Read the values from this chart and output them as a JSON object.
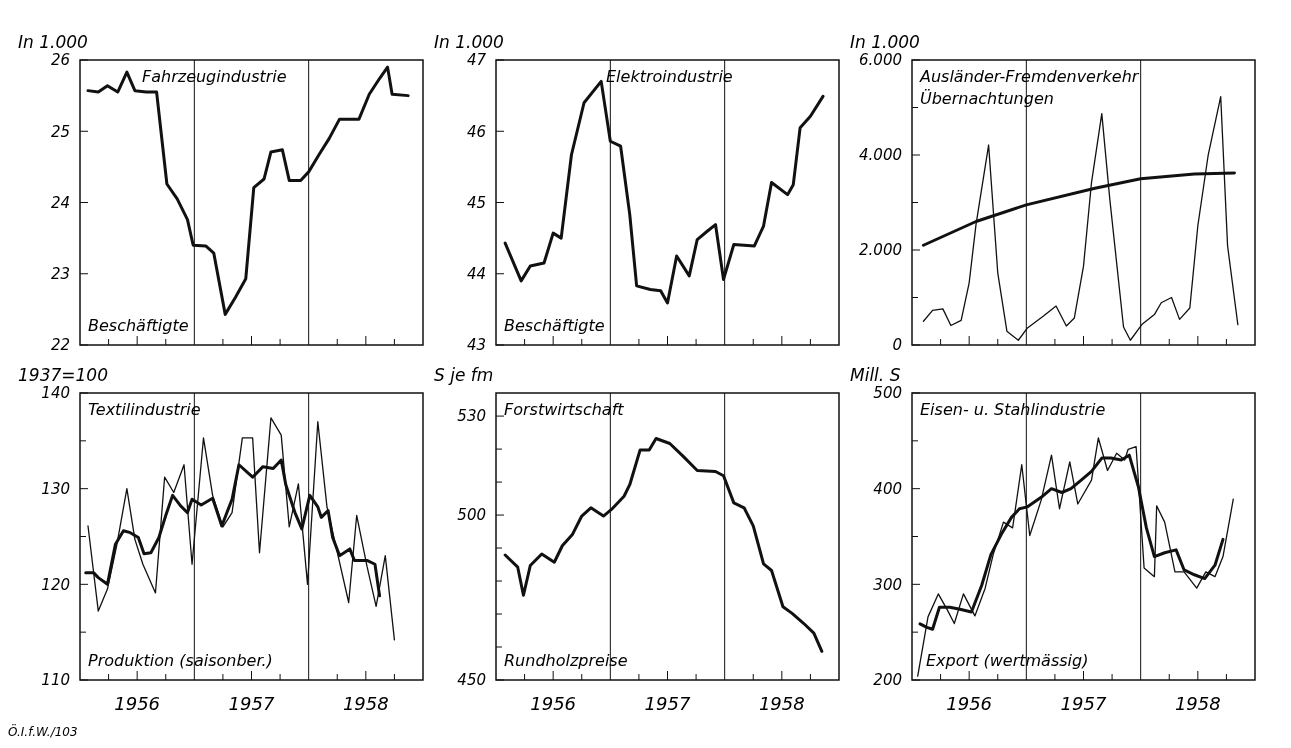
{
  "chart_data": [
    {
      "type": "line",
      "title": "Fahrzeugindustrie",
      "subtitle": "Beschäftigte",
      "ylabel": "In 1.000",
      "xlim": [
        1956,
        1959
      ],
      "ylim": [
        22,
        26
      ],
      "yticks": [
        22,
        23,
        24,
        25,
        26
      ],
      "xticks": [
        {
          "value": 1956.25,
          "label": null
        },
        {
          "value": 1956.5,
          "label": "1956"
        },
        {
          "value": 1956.75,
          "label": null
        },
        {
          "value": 1957.25,
          "label": null
        },
        {
          "value": 1957.5,
          "label": "1957"
        },
        {
          "value": 1957.75,
          "label": null
        },
        {
          "value": 1958.25,
          "label": null
        },
        {
          "value": 1958.5,
          "label": "1958"
        },
        {
          "value": 1958.75,
          "label": null
        }
      ],
      "tick_labels": "y",
      "ref_lines": [
        {
          "axis": "x",
          "value": 1957
        },
        {
          "axis": "x",
          "value": 1958
        }
      ],
      "series": [
        {
          "color": "#111111",
          "x": [
            1956.07,
            1956.16,
            1956.24,
            1956.33,
            1956.41,
            1956.48,
            1956.58,
            1956.67,
            1956.76,
            1956.85,
            1956.94,
            1956.99,
            1957.1,
            1957.17,
            1957.27,
            1957.36,
            1957.45,
            1957.52,
            1957.61,
            1957.67,
            1957.77,
            1957.83,
            1957.93,
            1958,
            1958.09,
            1958.18,
            1958.27,
            1958.44,
            1958.53,
            1958.62,
            1958.69,
            1958.73,
            1958.87
          ],
          "values": [
            25.57,
            25.55,
            25.64,
            25.55,
            25.83,
            25.57,
            25.55,
            25.55,
            24.26,
            24.05,
            23.76,
            23.4,
            23.39,
            23.29,
            22.43,
            22.67,
            22.93,
            24.21,
            24.33,
            24.71,
            24.74,
            24.31,
            24.31,
            24.43,
            24.67,
            24.9,
            25.17,
            25.17,
            25.52,
            25.74,
            25.9,
            25.52,
            25.5
          ]
        }
      ]
    },
    {
      "type": "line",
      "title": "Elektroindustrie",
      "subtitle": "Beschäftigte",
      "ylabel": "In 1.000",
      "xlim": [
        1956,
        1959
      ],
      "ylim": [
        43,
        47
      ],
      "yticks": [
        43,
        44,
        45,
        46,
        47
      ],
      "xticks": [
        {
          "value": 1956.25,
          "label": null
        },
        {
          "value": 1956.5,
          "label": "1956"
        },
        {
          "value": 1956.75,
          "label": null
        },
        {
          "value": 1957.25,
          "label": null
        },
        {
          "value": 1957.5,
          "label": "1957"
        },
        {
          "value": 1957.75,
          "label": null
        },
        {
          "value": 1958.25,
          "label": null
        },
        {
          "value": 1958.5,
          "label": "1958"
        },
        {
          "value": 1958.75,
          "label": null
        }
      ],
      "tick_labels": "y",
      "ref_lines": [
        {
          "axis": "x",
          "value": 1957
        },
        {
          "axis": "x",
          "value": 1958
        }
      ],
      "series": [
        {
          "color": "#111111",
          "x": [
            1956.08,
            1956.22,
            1956.3,
            1956.42,
            1956.5,
            1956.57,
            1956.66,
            1956.77,
            1956.92,
            1957,
            1957.09,
            1957.17,
            1957.23,
            1957.35,
            1957.44,
            1957.5,
            1957.58,
            1957.69,
            1957.76,
            1957.85,
            1957.92,
            1957.99,
            1958.08,
            1958.17,
            1958.26,
            1958.34,
            1958.41,
            1958.55,
            1958.6,
            1958.66,
            1958.75,
            1958.86
          ],
          "values": [
            44.43,
            43.9,
            44.11,
            44.15,
            44.57,
            44.5,
            45.67,
            46.4,
            46.7,
            45.86,
            45.79,
            44.83,
            43.83,
            43.78,
            43.76,
            43.59,
            44.25,
            43.97,
            44.48,
            44.6,
            44.69,
            43.92,
            44.41,
            44.4,
            44.39,
            44.67,
            45.28,
            45.11,
            45.25,
            46.05,
            46.21,
            46.49
          ]
        }
      ]
    },
    {
      "type": "line",
      "title": "Ausländer-Fremdenverkehr",
      "subtitle": "Übernachtungen",
      "ylabel": "In 1.000",
      "xlim": [
        1956,
        1959
      ],
      "ylim": [
        0,
        6000
      ],
      "yticks": [
        {
          "value": 0,
          "label": "0"
        },
        {
          "value": 1000,
          "label": null
        },
        {
          "value": 2000,
          "label": "2.000"
        },
        {
          "value": 3000,
          "label": null
        },
        {
          "value": 4000,
          "label": "4.000"
        },
        {
          "value": 5000,
          "label": null
        },
        {
          "value": 6000,
          "label": "6.000"
        }
      ],
      "xticks": [
        {
          "value": 1956.25,
          "label": null
        },
        {
          "value": 1956.5,
          "label": "1956"
        },
        {
          "value": 1956.75,
          "label": null
        },
        {
          "value": 1957.25,
          "label": null
        },
        {
          "value": 1957.5,
          "label": "1957"
        },
        {
          "value": 1957.75,
          "label": null
        },
        {
          "value": 1958.25,
          "label": null
        },
        {
          "value": 1958.5,
          "label": "1958"
        },
        {
          "value": 1958.75,
          "label": null
        }
      ],
      "tick_labels": "y",
      "ref_lines": [
        {
          "axis": "x",
          "value": 1957
        },
        {
          "axis": "x",
          "value": 1958
        }
      ],
      "series": [
        {
          "color": "#111111",
          "x": [
            1956.1,
            1956.56,
            1957,
            1957.6,
            1958,
            1958.47,
            1958.82
          ],
          "values": [
            2100,
            2600,
            2950,
            3300,
            3500,
            3600,
            3620
          ]
        },
        {
          "color": "#111111",
          "x": [
            1956.1,
            1956.18,
            1956.27,
            1956.34,
            1956.43,
            1956.5,
            1956.56,
            1956.67,
            1956.75,
            1956.83,
            1956.93,
            1957.01,
            1957.15,
            1957.26,
            1957.35,
            1957.42,
            1957.5,
            1957.57,
            1957.66,
            1957.73,
            1957.85,
            1957.91,
            1958.01,
            1958.12,
            1958.18,
            1958.27,
            1958.34,
            1958.43,
            1958.5,
            1958.59,
            1958.7,
            1958.76,
            1958.85
          ],
          "values": [
            500,
            730,
            760,
            410,
            520,
            1310,
            2540,
            4210,
            1520,
            290,
            100,
            360,
            610,
            820,
            400,
            570,
            1660,
            3420,
            4870,
            3070,
            380,
            100,
            430,
            640,
            890,
            1000,
            540,
            780,
            2510,
            3990,
            5230,
            2090,
            430
          ]
        }
      ]
    },
    {
      "type": "line",
      "title": "Textilindustrie",
      "subtitle": "Produktion (saisonber.)",
      "ylabel": "1937=100",
      "xlim": [
        1956,
        1959
      ],
      "ylim": [
        110,
        140
      ],
      "yticks": [
        110,
        {
          "value": 115,
          "label": null
        },
        120,
        {
          "value": 125,
          "label": null
        },
        130,
        {
          "value": 135,
          "label": null
        },
        140
      ],
      "xticks": [
        {
          "value": 1956.25,
          "label": null
        },
        {
          "value": 1956.5,
          "label": "1956"
        },
        {
          "value": 1956.75,
          "label": null
        },
        {
          "value": 1957.25,
          "label": null
        },
        {
          "value": 1957.5,
          "label": "1957"
        },
        {
          "value": 1957.75,
          "label": null
        },
        {
          "value": 1958.25,
          "label": null
        },
        {
          "value": 1958.5,
          "label": "1958"
        },
        {
          "value": 1958.75,
          "label": null
        }
      ],
      "ref_lines": [
        {
          "axis": "x",
          "value": 1957
        },
        {
          "axis": "x",
          "value": 1958
        }
      ],
      "annotations": [
        "Ö.I.f.W./103"
      ],
      "series": [
        {
          "color": "#111111",
          "x": [
            1956.05,
            1956.12,
            1956.16,
            1956.24,
            1956.31,
            1956.38,
            1956.44,
            1956.51,
            1956.56,
            1956.62,
            1956.69,
            1956.75,
            1956.81,
            1956.88,
            1956.94,
            1956.98,
            1957.06,
            1957.16,
            1957.24,
            1957.33,
            1957.39,
            1957.51,
            1957.6,
            1957.69,
            1957.76,
            1957.8,
            1957.88,
            1957.94,
            1958.01,
            1958.08,
            1958.11,
            1958.17,
            1958.21,
            1958.27,
            1958.36,
            1958.4,
            1958.51,
            1958.58,
            1958.62
          ],
          "values": [
            121.2,
            121.2,
            120.7,
            120,
            124.2,
            125.6,
            125.4,
            124.9,
            123.2,
            123.3,
            124.9,
            127.2,
            129.3,
            128.2,
            127.5,
            128.9,
            128.3,
            129,
            126.1,
            128.9,
            132.5,
            131.2,
            132.3,
            132.1,
            133,
            130.4,
            127.5,
            125.8,
            129.3,
            128.1,
            127,
            127.7,
            124.9,
            123,
            123.7,
            122.5,
            122.5,
            122.1,
            118.8
          ]
        },
        {
          "color": "#111111",
          "x": [
            1956.07,
            1956.16,
            1956.24,
            1956.32,
            1956.41,
            1956.48,
            1956.55,
            1956.66,
            1956.74,
            1956.82,
            1956.91,
            1956.98,
            1957.08,
            1957.16,
            1957.25,
            1957.33,
            1957.42,
            1957.51,
            1957.57,
            1957.67,
            1957.76,
            1957.83,
            1957.91,
            1957.99,
            1958.08,
            1958.16,
            1958.24,
            1958.35,
            1958.42,
            1958.51,
            1958.59,
            1958.67,
            1958.75
          ],
          "values": [
            126.1,
            117.2,
            119.5,
            124,
            130,
            124.7,
            122.1,
            119.1,
            131.2,
            129.6,
            132.5,
            122.1,
            135.3,
            129.3,
            126,
            127.5,
            135.3,
            135.3,
            123.3,
            137.4,
            135.6,
            126,
            130.5,
            120,
            137,
            128.1,
            123.9,
            118.1,
            127.2,
            121.9,
            117.7,
            123,
            114.2
          ]
        }
      ]
    },
    {
      "type": "line",
      "title": "Forstwirtschaft",
      "subtitle": "Rundholzpreise",
      "ylabel": "S je fm",
      "xlim": [
        1956,
        1959
      ],
      "ylim": [
        450,
        537
      ],
      "yticks": [
        450,
        {
          "value": 460,
          "label": null
        },
        {
          "value": 470,
          "label": null
        },
        {
          "value": 480,
          "label": null
        },
        {
          "value": 490,
          "label": null
        },
        500,
        {
          "value": 510,
          "label": null
        },
        {
          "value": 520,
          "label": null
        },
        530
      ],
      "xticks": [
        {
          "value": 1956.25,
          "label": null
        },
        {
          "value": 1956.5,
          "label": "1956"
        },
        {
          "value": 1956.75,
          "label": null
        },
        {
          "value": 1957.25,
          "label": null
        },
        {
          "value": 1957.5,
          "label": "1957"
        },
        {
          "value": 1957.75,
          "label": null
        },
        {
          "value": 1958.25,
          "label": null
        },
        {
          "value": 1958.5,
          "label": "1958"
        },
        {
          "value": 1958.75,
          "label": null
        }
      ],
      "ref_lines": [
        {
          "axis": "x",
          "value": 1957
        },
        {
          "axis": "x",
          "value": 1958
        }
      ],
      "series": [
        {
          "color": "#111111",
          "x": [
            1956.08,
            1956.19,
            1956.24,
            1956.3,
            1956.4,
            1956.51,
            1956.58,
            1956.67,
            1956.75,
            1956.83,
            1956.94,
            1957.01,
            1957.12,
            1957.17,
            1957.26,
            1957.34,
            1957.4,
            1957.52,
            1957.64,
            1957.76,
            1957.92,
            1957.99,
            1958.08,
            1958.17,
            1958.25,
            1958.34,
            1958.41,
            1958.51,
            1958.59,
            1958.69,
            1958.78,
            1958.85
          ],
          "values": [
            487.9,
            484.2,
            475.7,
            484.7,
            488.2,
            485.7,
            490.7,
            494.2,
            499.7,
            502.2,
            499.7,
            501.7,
            505.7,
            509.2,
            519.7,
            519.7,
            523.2,
            521.7,
            517.7,
            513.5,
            513.2,
            511.9,
            503.7,
            502.2,
            496.7,
            485.2,
            483.2,
            472.2,
            470.2,
            467.2,
            464.2,
            458.7
          ]
        }
      ]
    },
    {
      "type": "line",
      "title": "Eisen- u. Stahlindustrie",
      "subtitle": "Export (wertmässig)",
      "ylabel": "Mill. S",
      "xlim": [
        1956,
        1959
      ],
      "ylim": [
        200,
        500
      ],
      "yticks": [
        200,
        {
          "value": 250,
          "label": null
        },
        300,
        {
          "value": 350,
          "label": null
        },
        400,
        {
          "value": 450,
          "label": null
        },
        500
      ],
      "xticks": [
        {
          "value": 1956.25,
          "label": null
        },
        {
          "value": 1956.5,
          "label": "1956"
        },
        {
          "value": 1956.75,
          "label": null
        },
        {
          "value": 1957.25,
          "label": null
        },
        {
          "value": 1957.5,
          "label": "1957"
        },
        {
          "value": 1957.75,
          "label": null
        },
        {
          "value": 1958.25,
          "label": null
        },
        {
          "value": 1958.5,
          "label": "1958"
        },
        {
          "value": 1958.75,
          "label": null
        }
      ],
      "ref_lines": [
        {
          "axis": "x",
          "value": 1957
        },
        {
          "axis": "x",
          "value": 1958
        }
      ],
      "series": [
        {
          "color": "#111111",
          "x": [
            1956.07,
            1956.13,
            1956.18,
            1956.24,
            1956.33,
            1956.42,
            1956.52,
            1956.61,
            1956.69,
            1956.78,
            1956.87,
            1956.94,
            1957.01,
            1957.13,
            1957.22,
            1957.31,
            1957.39,
            1957.48,
            1957.57,
            1957.66,
            1957.74,
            1957.83,
            1957.9,
            1957.98,
            1958.05,
            1958.12,
            1958.21,
            1958.31,
            1958.38,
            1958.47,
            1958.56,
            1958.65,
            1958.72
          ],
          "values": [
            258.7,
            255,
            253,
            276,
            276,
            274,
            271,
            299,
            331,
            352,
            370,
            379,
            381,
            391,
            400,
            396,
            400,
            409,
            418,
            432,
            432,
            430,
            435,
            402,
            359,
            329,
            333,
            336,
            315,
            310,
            306,
            320,
            347
          ]
        },
        {
          "color": "#111111",
          "x": [
            1956.05,
            1956.14,
            1956.23,
            1956.31,
            1956.37,
            1956.45,
            1956.55,
            1956.64,
            1956.71,
            1956.8,
            1956.88,
            1956.96,
            1957.03,
            1957.13,
            1957.22,
            1957.29,
            1957.38,
            1957.45,
            1957.57,
            1957.63,
            1957.71,
            1957.79,
            1957.86,
            1957.89,
            1957.96,
            1958.03,
            1958.12,
            1958.14,
            1958.21,
            1958.3,
            1958.38,
            1958.49,
            1958.57,
            1958.65,
            1958.72,
            1958.81
          ],
          "values": [
            204,
            266,
            290,
            273,
            259,
            290,
            267,
            296,
            331,
            365,
            359,
            425,
            351,
            388,
            435,
            379,
            428,
            384,
            409,
            453,
            419,
            437,
            430,
            441,
            444,
            317,
            308,
            382,
            365,
            313,
            313,
            296,
            313,
            308,
            329,
            389
          ]
        }
      ]
    }
  ]
}
